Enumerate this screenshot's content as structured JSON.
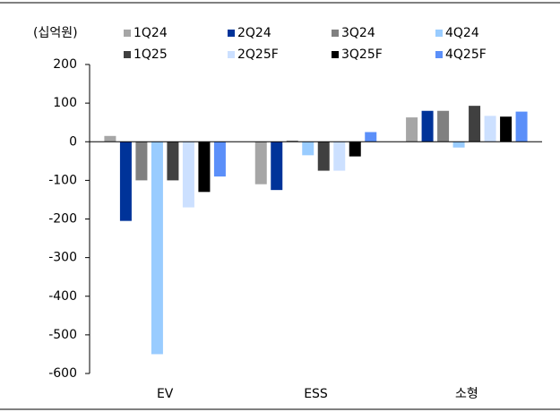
{
  "chart_data": {
    "type": "bar",
    "unit_label": "(십억원)",
    "categories": [
      "EV",
      "ESS",
      "소형"
    ],
    "series": [
      {
        "name": "1Q24",
        "color": "#a6a6a6",
        "values": [
          15,
          -110,
          63
        ]
      },
      {
        "name": "2Q24",
        "color": "#003399",
        "values": [
          -205,
          -125,
          80
        ]
      },
      {
        "name": "3Q24",
        "color": "#808080",
        "values": [
          -100,
          3,
          80
        ]
      },
      {
        "name": "4Q24",
        "color": "#99ccff",
        "values": [
          -550,
          -35,
          -15
        ]
      },
      {
        "name": "1Q25",
        "color": "#404040",
        "values": [
          -100,
          -75,
          93
        ]
      },
      {
        "name": "2Q25F",
        "color": "#cce0ff",
        "values": [
          -170,
          -75,
          67
        ]
      },
      {
        "name": "3Q25F",
        "color": "#000000",
        "values": [
          -130,
          -38,
          65
        ]
      },
      {
        "name": "4Q25F",
        "color": "#5b8ff9",
        "values": [
          -90,
          25,
          78
        ]
      }
    ],
    "ylim": [
      -600,
      200
    ],
    "yticks": [
      -600,
      -500,
      -400,
      -300,
      -200,
      -100,
      0,
      100,
      200
    ],
    "grid": false,
    "legend": "top"
  }
}
